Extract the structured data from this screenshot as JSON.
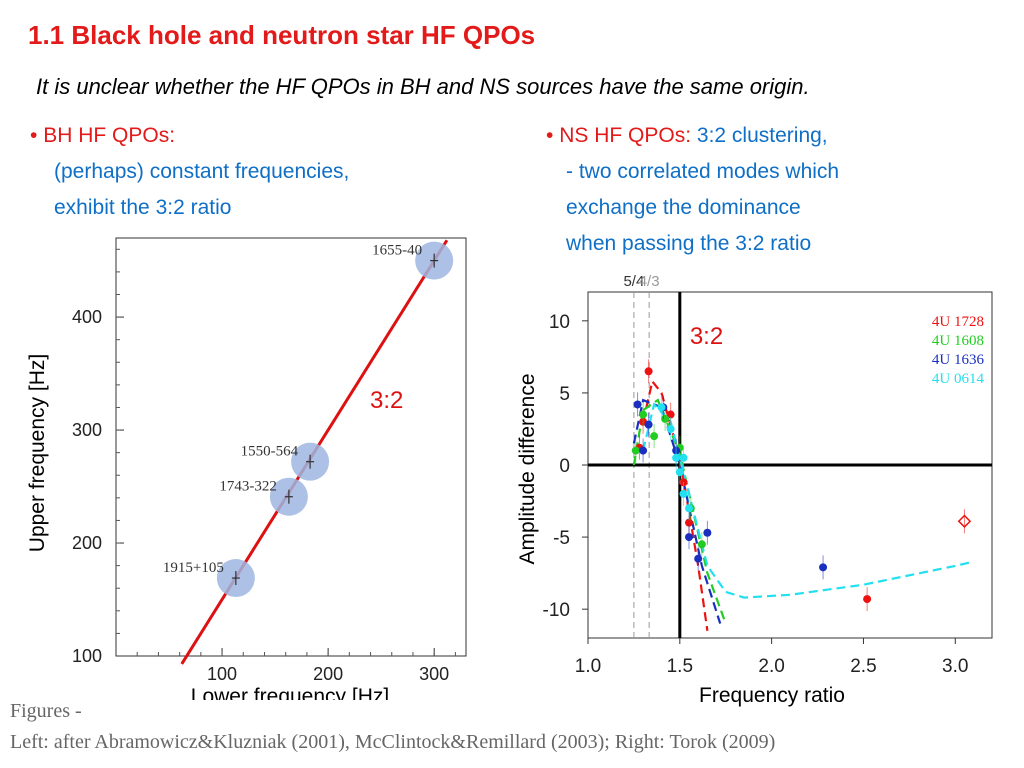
{
  "slide": {
    "title": "1.1 Black hole and neutron star  HF QPOs",
    "subtitle": "It is unclear whether the HF QPOs in BH and NS sources have the same origin.",
    "bh": {
      "bullet_marker": "•",
      "heading": "BH HF QPOs:",
      "lines": [
        "(perhaps) constant frequencies,",
        "exhibit the 3:2 ratio"
      ]
    },
    "ns": {
      "bullet_marker": "•",
      "heading": "NS HF QPOs:",
      "heading_suffix": "3:2 clustering,",
      "lines": [
        "- two correlated modes which",
        "exchange the dominance",
        "when passing the 3:2 ratio"
      ]
    },
    "caption": {
      "line1": "Figures -",
      "line2": "Left: after Abramowicz&Kluzniak (2001), McClintock&Remillard (2003); Right: Torok (2009)"
    }
  },
  "chart_data": [
    {
      "type": "scatter",
      "xlabel": "Lower frequency [Hz]",
      "ylabel": "Upper frequency [Hz]",
      "x_ticks": [
        "100",
        "200",
        "300"
      ],
      "y_ticks": [
        "100",
        "200",
        "300",
        "400"
      ],
      "xlim": [
        0,
        330
      ],
      "ylim": [
        100,
        470
      ],
      "ratio_line": {
        "label": "3:2",
        "slope": 1.5,
        "color": "#dd1111"
      },
      "points": [
        {
          "label": "1655-40",
          "x": 300,
          "y": 450
        },
        {
          "label": "1550-564",
          "x": 183,
          "y": 272
        },
        {
          "label": "1743-322",
          "x": 163,
          "y": 241
        },
        {
          "label": "1915+105",
          "x": 113,
          "y": 169
        }
      ],
      "marker_color": "#9db6e0"
    },
    {
      "type": "scatter",
      "xlabel": "Frequency ratio",
      "ylabel": "Amplitude difference",
      "x_ticks": [
        "1.0",
        "1.5",
        "2.0",
        "2.5",
        "3.0"
      ],
      "y_ticks": [
        "10",
        "5",
        "0",
        "-5",
        "-10"
      ],
      "xlim": [
        1.0,
        3.2
      ],
      "ylim": [
        -12,
        12
      ],
      "vertical_ref": {
        "x": 1.5,
        "label": "3:2"
      },
      "dashed_refs": [
        {
          "x": 1.25,
          "label": "5/4"
        },
        {
          "x": 1.333,
          "label": "4/3"
        }
      ],
      "series": [
        {
          "name": "4U 1728",
          "color": "#ee1111",
          "points": [
            [
              1.33,
              6.5
            ],
            [
              1.3,
              3.0
            ],
            [
              1.28,
              1.2
            ],
            [
              1.45,
              3.5
            ],
            [
              1.52,
              -1.2
            ],
            [
              1.55,
              -4.0
            ],
            [
              2.52,
              -9.3
            ]
          ],
          "curve": [
            [
              1.3,
              3.0
            ],
            [
              1.35,
              5.8
            ],
            [
              1.4,
              5.0
            ],
            [
              1.5,
              0.5
            ],
            [
              1.6,
              -7.0
            ],
            [
              1.65,
              -11.5
            ]
          ]
        },
        {
          "name": "4U 1608",
          "color": "#22cc22",
          "points": [
            [
              1.26,
              1.0
            ],
            [
              1.3,
              3.5
            ],
            [
              1.36,
              2.0
            ],
            [
              1.42,
              3.2
            ],
            [
              1.5,
              1.2
            ],
            [
              1.56,
              -3.0
            ],
            [
              1.62,
              -5.5
            ]
          ],
          "curve": [
            [
              1.25,
              0.0
            ],
            [
              1.3,
              3.8
            ],
            [
              1.38,
              4.5
            ],
            [
              1.5,
              0.8
            ],
            [
              1.65,
              -7.5
            ],
            [
              1.75,
              -11.0
            ]
          ]
        },
        {
          "name": "4U 1636",
          "color": "#1a2fc0",
          "points": [
            [
              1.27,
              4.2
            ],
            [
              1.3,
              1.0
            ],
            [
              1.33,
              2.8
            ],
            [
              1.41,
              4.0
            ],
            [
              1.48,
              1.0
            ],
            [
              1.55,
              -5.0
            ],
            [
              1.6,
              -6.5
            ],
            [
              1.65,
              -4.7
            ],
            [
              2.28,
              -7.1
            ]
          ],
          "curve": [
            [
              1.25,
              1.5
            ],
            [
              1.3,
              4.5
            ],
            [
              1.4,
              4.0
            ],
            [
              1.5,
              0.0
            ],
            [
              1.62,
              -7.0
            ],
            [
              1.72,
              -11.0
            ]
          ]
        },
        {
          "name": "4U 0614",
          "color": "#22e0f0",
          "points": [
            [
              1.4,
              4.0
            ],
            [
              1.45,
              2.5
            ],
            [
              1.48,
              0.5
            ],
            [
              1.5,
              -0.5
            ],
            [
              1.52,
              -2.0
            ],
            [
              1.55,
              -3.0
            ],
            [
              1.52,
              0.5
            ]
          ],
          "curve": [
            [
              1.3,
              1.0
            ],
            [
              1.36,
              4.2
            ],
            [
              1.45,
              3.0
            ],
            [
              1.55,
              -2.0
            ],
            [
              1.65,
              -7.0
            ],
            [
              1.75,
              -8.8
            ],
            [
              1.85,
              -9.2
            ],
            [
              2.1,
              -9.0
            ],
            [
              2.5,
              -8.3
            ],
            [
              3.0,
              -7.0
            ],
            [
              3.1,
              -6.7
            ]
          ]
        },
        {
          "name": "",
          "color": "#ee1111",
          "hollow": true,
          "points": [
            [
              3.05,
              -3.9
            ]
          ],
          "curve": []
        }
      ]
    }
  ]
}
